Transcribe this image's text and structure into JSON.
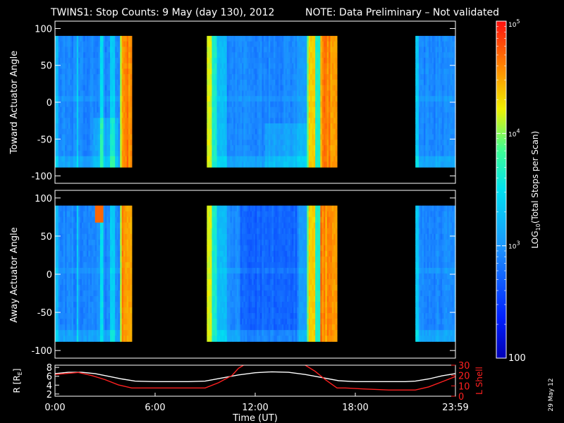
{
  "header": {
    "title": "TWINS1: Stop Counts:  9 May (day 130), 2012",
    "note": "NOTE: Data Preliminary – Not validated",
    "note_color": "#ff2020"
  },
  "side_stamp": "29 May 12",
  "chart_data": [
    {
      "type": "heatmap",
      "ylabel": "Toward Actuator Angle",
      "ylim": [
        -110,
        110
      ],
      "yticks": [
        "100",
        "50",
        "0",
        "-50",
        "-100"
      ],
      "ytick_values": [
        100,
        50,
        0,
        -50,
        -100
      ],
      "y_range": [
        -88,
        90
      ],
      "data_intervals_ut": [
        [
          0.0,
          4.6
        ],
        [
          9.1,
          16.9
        ],
        [
          21.6,
          24.0
        ]
      ],
      "colormap": "rainbow",
      "colorscale": "log"
    },
    {
      "type": "heatmap",
      "ylabel": "Away Actuator Angle",
      "ylim": [
        -110,
        110
      ],
      "yticks": [
        "100",
        "50",
        "0",
        "-50",
        "-100"
      ],
      "ytick_values": [
        100,
        50,
        0,
        -50,
        -100
      ],
      "y_range": [
        -88,
        90
      ],
      "data_intervals_ut": [
        [
          0.0,
          4.6
        ],
        [
          9.1,
          16.9
        ],
        [
          21.6,
          24.0
        ]
      ],
      "colormap": "rainbow",
      "colorscale": "log"
    },
    {
      "type": "line",
      "ylabel_left": "R [R",
      "ylabel_left_sub": "E",
      "ylabel_left_end": "]",
      "ylabel_right": "L Shell",
      "left_ylim": [
        1.5,
        8.5
      ],
      "left_yticks": [
        "8",
        "6",
        "4",
        "2"
      ],
      "left_ytick_values": [
        8,
        6,
        4,
        2
      ],
      "right_ylim": [
        0,
        30
      ],
      "right_yticks": [
        "30",
        "20",
        "10",
        "0"
      ],
      "right_ytick_values": [
        30,
        20,
        10,
        0
      ],
      "xlim": [
        0,
        24
      ],
      "xticks": [
        "0:00",
        "6:00",
        "12:00",
        "18:00",
        "23:59"
      ],
      "xtick_values": [
        0,
        6,
        12,
        18,
        24
      ],
      "xlabel": "Time (UT)",
      "series": [
        {
          "color": "#ffffff",
          "axis": "left",
          "x": [
            0,
            0.8,
            1.6,
            2.4,
            3.2,
            4,
            4.8,
            6,
            7,
            8,
            9,
            10,
            11,
            12,
            13,
            14,
            15,
            16,
            17,
            18,
            19,
            20,
            21,
            21.6,
            22.4,
            23.2,
            24
          ],
          "y": [
            6.6,
            6.9,
            6.9,
            6.6,
            6.0,
            5.4,
            4.9,
            4.8,
            4.8,
            4.8,
            4.9,
            5.6,
            6.3,
            6.8,
            7.0,
            6.9,
            6.4,
            5.7,
            5.0,
            4.8,
            4.8,
            4.8,
            4.8,
            4.9,
            5.4,
            6.1,
            6.6
          ]
        },
        {
          "color": "#ff2020",
          "axis": "right",
          "x": [
            0,
            1.4,
            2.2,
            3.0,
            3.8,
            4.6,
            5.0,
            6.5,
            8.0,
            9.0,
            9.8,
            10.6,
            11.0,
            11.3
          ],
          "y": [
            21,
            23,
            20,
            16,
            11,
            8,
            8,
            8,
            8,
            8,
            13,
            20,
            27,
            31
          ]
        },
        {
          "color": "#ff2020",
          "axis": "right",
          "x": [
            15.0,
            15.6,
            16.2,
            16.9,
            17.4,
            18.5,
            20.0,
            21.0,
            21.6,
            22.4,
            23.2,
            24.0
          ],
          "y": [
            31,
            24,
            16,
            8,
            8,
            7,
            6,
            6,
            6,
            9,
            14,
            19
          ]
        }
      ]
    }
  ],
  "colorbar": {
    "label": "LOG",
    "label_sub": "10",
    "label_end": "(Total Stops per Scan)",
    "scale": "log",
    "range": [
      100,
      100000
    ],
    "ticks": [
      {
        "value": 100000,
        "base": "10",
        "exp": "5"
      },
      {
        "value": 10000,
        "base": "10",
        "exp": "4"
      },
      {
        "value": 1000,
        "base": "10",
        "exp": "3"
      },
      {
        "value": 100,
        "base": "100",
        "exp": ""
      }
    ]
  }
}
